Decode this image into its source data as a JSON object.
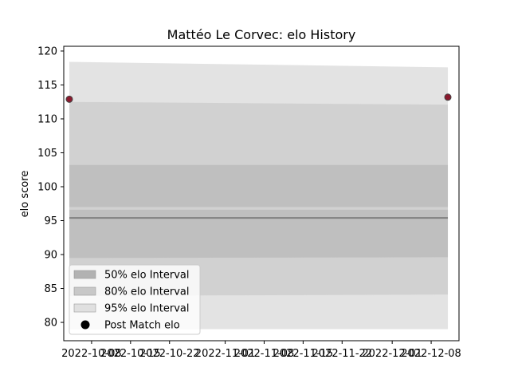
{
  "chart_data": {
    "type": "line",
    "title": "Mattéo Le Corvec: elo History",
    "xlabel": "",
    "ylabel": "elo score",
    "x_axis_type": "date",
    "xlim": [
      "2022-10-03",
      "2022-12-13"
    ],
    "ylim": [
      77.3,
      120.7
    ],
    "x_ticks": [
      "2022-10-08",
      "2022-10-15",
      "2022-10-22",
      "2022-11-01",
      "2022-11-08",
      "2022-11-15",
      "2022-11-22",
      "2022-12-01",
      "2022-12-08"
    ],
    "y_ticks": [
      80,
      85,
      90,
      95,
      100,
      105,
      110,
      115,
      120
    ],
    "grid": false,
    "legend_placement": "lower-left",
    "x": [
      "2022-10-04",
      "2022-12-11"
    ],
    "mean_line": {
      "values": [
        95.4,
        95.4
      ],
      "color": "#808080"
    },
    "bands": [
      {
        "name": "95% elo Interval",
        "lower": [
          79.0,
          79.0
        ],
        "upper": [
          118.4,
          117.6
        ],
        "color": "#e3e3e3"
      },
      {
        "name": "80% elo Interval",
        "lower": [
          83.9,
          84.1
        ],
        "upper": [
          112.5,
          112.1
        ],
        "color": "#d1d1d1"
      },
      {
        "name": "50% elo Interval",
        "lower": [
          89.5,
          89.6
        ],
        "upper": [
          96.6,
          96.6
        ],
        "color": "#bfbfbf"
      },
      {
        "name": "",
        "lower": [
          97.0,
          97.0
        ],
        "upper": [
          103.2,
          103.2
        ],
        "color": "#bfbfbf"
      }
    ],
    "points": {
      "name": "Post Match elo",
      "x": [
        "2022-10-04",
        "2022-12-11"
      ],
      "y": [
        112.9,
        113.2
      ],
      "color": "#8b1a2e",
      "edge_color": "#444444"
    },
    "legend": [
      {
        "label": "50% elo Interval",
        "swatch": "#b2b2b2"
      },
      {
        "label": "80% elo Interval",
        "swatch": "#c8c8c8"
      },
      {
        "label": "95% elo Interval",
        "swatch": "#e0e0e0"
      },
      {
        "label": "Post Match elo",
        "marker": "circle",
        "swatch": "#000000"
      }
    ]
  }
}
